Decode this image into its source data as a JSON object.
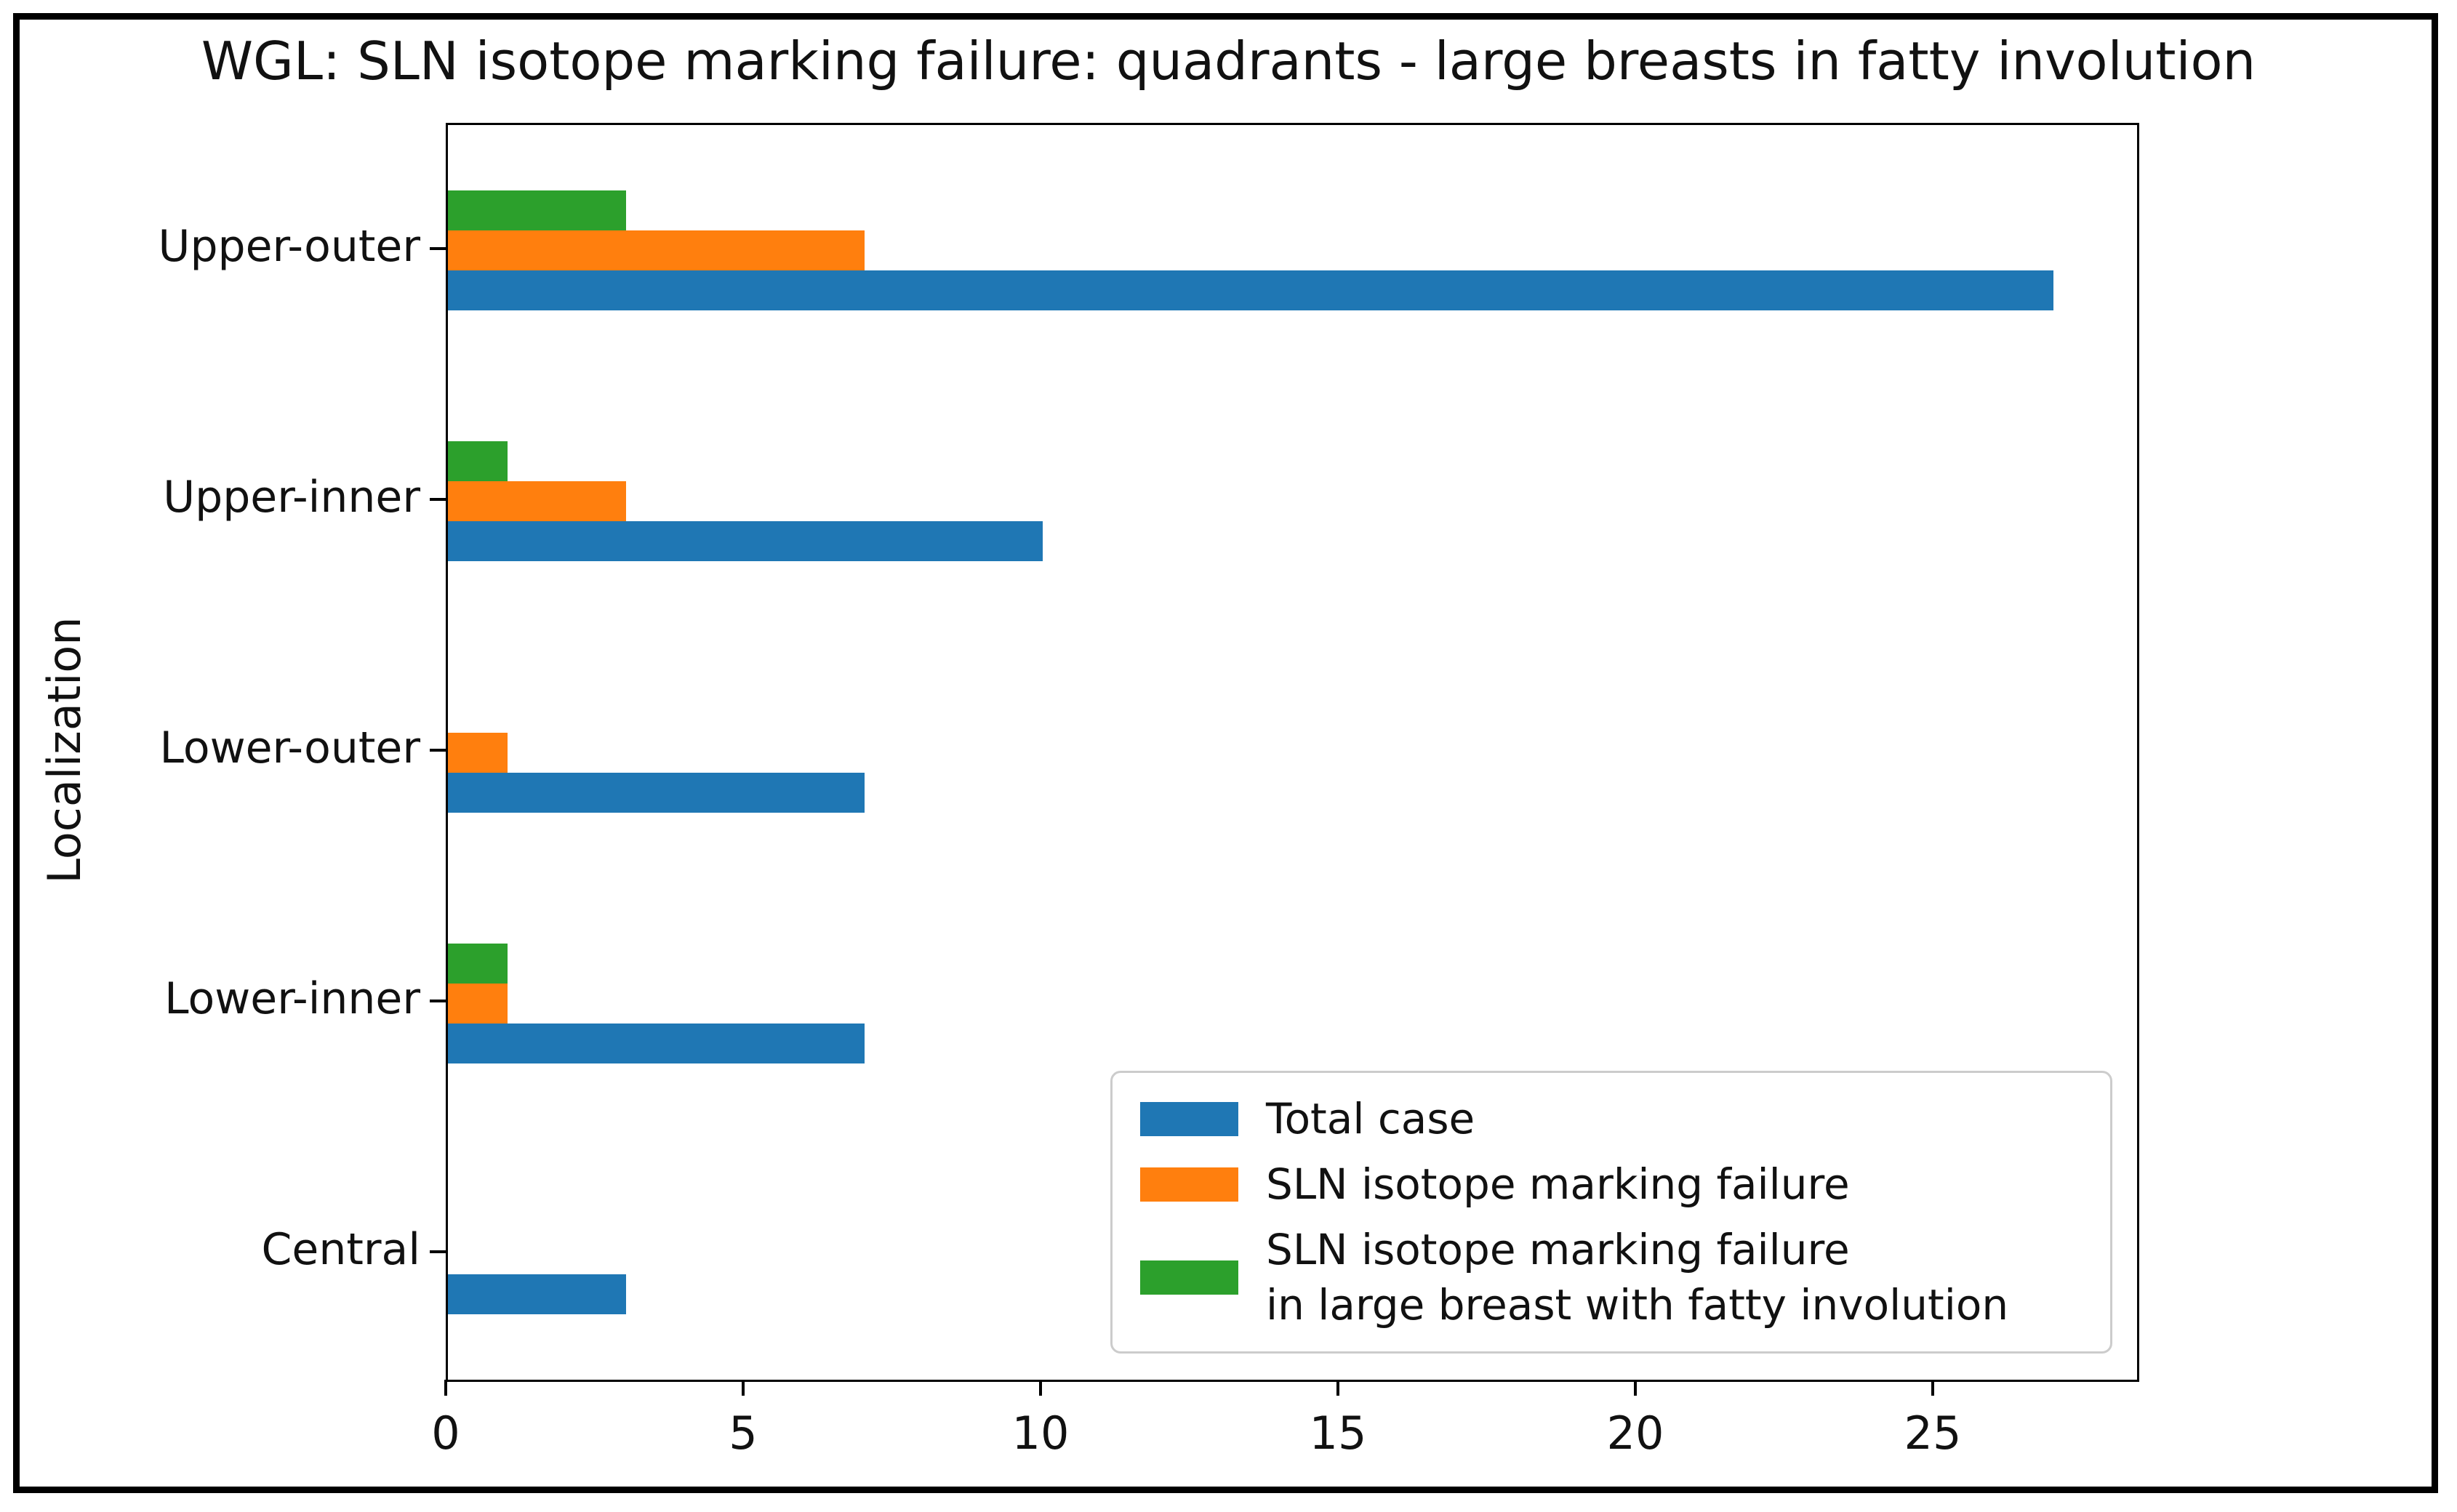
{
  "chart_data": {
    "type": "bar",
    "orientation": "horizontal",
    "title": "WGL: SLN isotope marking failure: quadrants - large breasts in fatty involution",
    "xlabel": "",
    "ylabel": "Localization",
    "categories": [
      "Upper-outer",
      "Upper-inner",
      "Lower-outer",
      "Lower-inner",
      "Central"
    ],
    "series": [
      {
        "name": "Total case",
        "color": "#1f77b4",
        "values": [
          27,
          10,
          7,
          7,
          3
        ]
      },
      {
        "name": "SLN isotope marking failure",
        "color": "#ff7f0e",
        "values": [
          7,
          3,
          1,
          1,
          0
        ]
      },
      {
        "name": "SLN isotope marking failure\nin large breast with fatty involution",
        "color": "#2ca02c",
        "values": [
          3,
          1,
          0,
          1,
          0
        ]
      }
    ],
    "x_ticks": [
      0,
      5,
      10,
      15,
      20,
      25
    ],
    "xlim": [
      0,
      28.4
    ],
    "grid": false,
    "legend_position": "lower right",
    "legend": {
      "entries": [
        {
          "label": "Total case",
          "color": "#1f77b4"
        },
        {
          "label": "SLN isotope marking failure",
          "color": "#ff7f0e"
        },
        {
          "label": "SLN isotope marking failure\nin large breast with fatty involution",
          "color": "#2ca02c"
        }
      ]
    }
  }
}
